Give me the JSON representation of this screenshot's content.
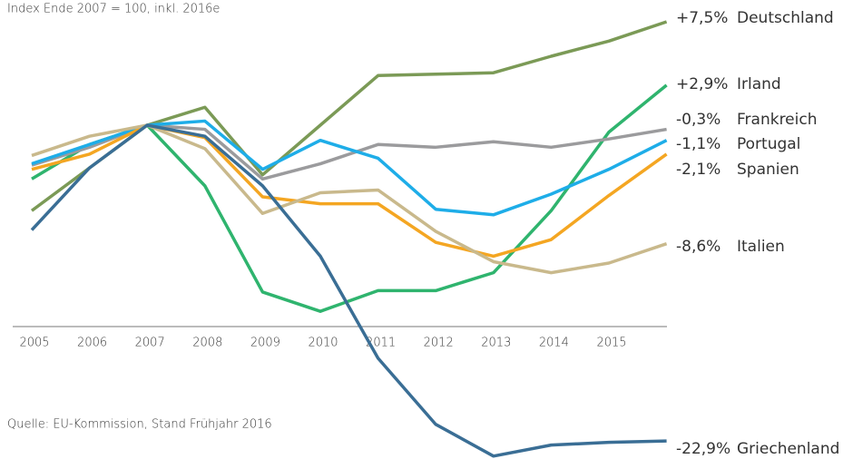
{
  "chart_data": {
    "type": "line",
    "subtitle": "Index Ende 2007 = 100, inkl. 2016e",
    "source": "Quelle: EU-Kommission, Stand Frühjahr 2016",
    "categories": [
      "2005",
      "2006",
      "2007",
      "2008",
      "2009",
      "2010",
      "2011",
      "2012",
      "2013",
      "2014",
      "2015",
      null
    ],
    "ylim": [
      75,
      110
    ],
    "series": [
      {
        "name": "Deutschland",
        "change_label": "+7,5%",
        "color": "#7b9a56",
        "values": [
          93.8,
          96.9,
          100,
          101.3,
          96.4,
          100,
          103.6,
          103.7,
          103.8,
          105,
          106.1,
          107.5
        ]
      },
      {
        "name": "Irland",
        "change_label": "+2,9%",
        "color": "#2fb46e",
        "values": [
          96.1,
          98.6,
          100,
          95.6,
          87.9,
          86.5,
          88.0,
          88.0,
          89.3,
          93.8,
          99.5,
          102.9
        ]
      },
      {
        "name": "Frankreich",
        "change_label": "-0,3%",
        "color": "#9b9b9d",
        "values": [
          97.1,
          98.4,
          100,
          99.7,
          96.1,
          97.2,
          98.6,
          98.4,
          98.8,
          98.4,
          99.0,
          99.7
        ]
      },
      {
        "name": "Portugal",
        "change_label": "-1,1%",
        "color": "#1eade8",
        "values": [
          97.2,
          98.6,
          100,
          100.3,
          96.8,
          98.9,
          97.6,
          93.9,
          93.5,
          95.0,
          96.8,
          98.9
        ]
      },
      {
        "name": "Spanien",
        "change_label": "-2,1%",
        "color": "#f4a622",
        "values": [
          96.8,
          97.9,
          100,
          99.1,
          94.8,
          94.3,
          94.3,
          91.5,
          90.5,
          91.7,
          94.9,
          97.9
        ]
      },
      {
        "name": "Italien",
        "change_label": "-8,6%",
        "color": "#c9b98c",
        "values": [
          97.8,
          99.2,
          100,
          98.3,
          93.6,
          95.1,
          95.3,
          92.3,
          90.1,
          89.3,
          90.0,
          91.4
        ]
      },
      {
        "name": "Griechenland",
        "change_label": "-22,9%",
        "color": "#3a6e95",
        "values": [
          92.4,
          96.9,
          100,
          99.2,
          95.6,
          90.5,
          83.1,
          78.3,
          76.0,
          76.8,
          77.0,
          77.1
        ]
      }
    ]
  }
}
